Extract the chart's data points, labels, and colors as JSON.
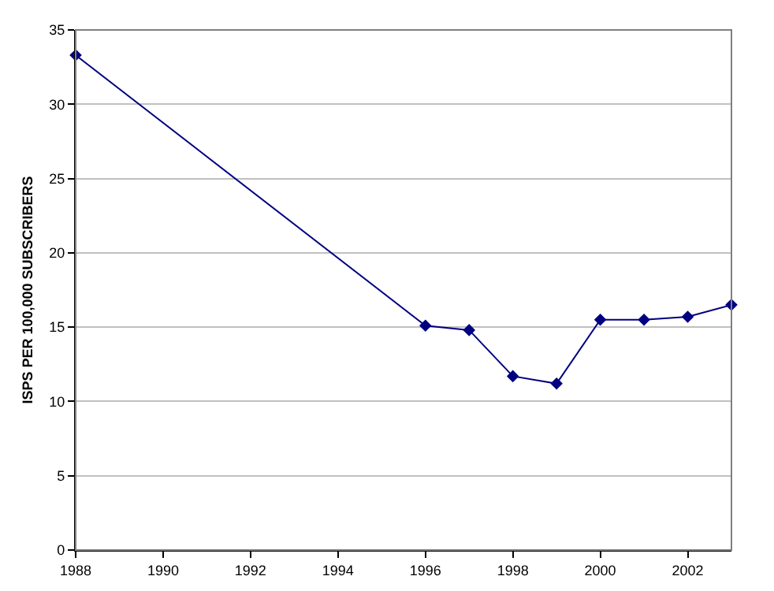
{
  "chart_data": {
    "type": "line",
    "ylabel": "ISPS PER 100,000 SUBSCRIBERS",
    "x": [
      1988,
      1996,
      1997,
      1998,
      1999,
      2000,
      2001,
      2002,
      2003
    ],
    "series": [
      {
        "color": "#000080",
        "values": [
          33.3,
          15.1,
          14.8,
          11.7,
          11.2,
          15.5,
          15.5,
          15.7,
          16.5
        ]
      }
    ],
    "xlim": [
      1988,
      2003
    ],
    "xticks": [
      1988,
      1990,
      1992,
      1994,
      1996,
      1998,
      2000,
      2002
    ],
    "ylim": [
      0,
      35
    ],
    "yticks": [
      0,
      5,
      10,
      15,
      20,
      25,
      30,
      35
    ],
    "grid": "y",
    "marker": "diamond",
    "line_style": "solid"
  }
}
